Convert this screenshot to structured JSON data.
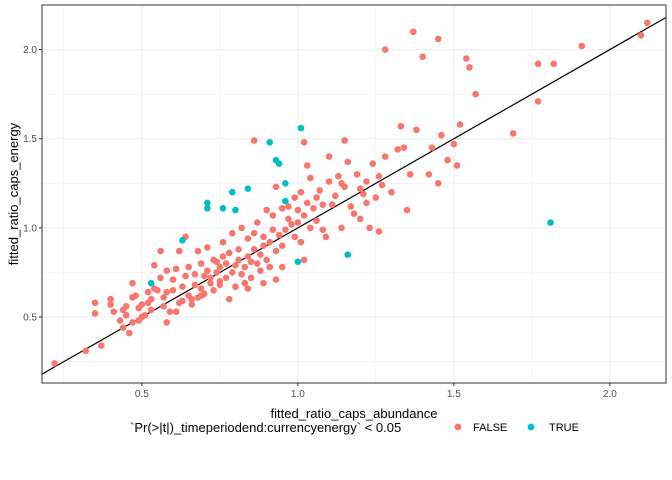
{
  "chart_data": {
    "type": "scatter",
    "xlabel": "fitted_ratio_caps_abundance",
    "ylabel": "fitted_ratio_caps_energy",
    "xlim": [
      0.18,
      2.18
    ],
    "ylim": [
      0.13,
      2.25
    ],
    "x_ticks": [
      0.5,
      1.0,
      1.5,
      2.0
    ],
    "x_tick_labels": [
      "0.5",
      "1.0",
      "1.5",
      "2.0"
    ],
    "y_ticks": [
      0.5,
      1.0,
      1.5,
      2.0
    ],
    "y_tick_labels": [
      "0.5",
      "1.0",
      "1.5",
      "2.0"
    ],
    "grid": true,
    "reference_line": {
      "type": "identity",
      "slope": 1,
      "intercept": 0,
      "color": "#000000"
    },
    "legend": {
      "title": "`Pr(>|t|)_timeperiodend:currencyenergy` < 0.05",
      "position": "bottom",
      "entries": [
        {
          "label": "FALSE",
          "color": "#F8766D"
        },
        {
          "label": "TRUE",
          "color": "#00BFC4"
        }
      ]
    },
    "series": [
      {
        "name": "FALSE",
        "color": "#F8766D",
        "points": [
          [
            0.22,
            0.24
          ],
          [
            0.32,
            0.31
          ],
          [
            0.37,
            0.34
          ],
          [
            0.35,
            0.58
          ],
          [
            0.35,
            0.52
          ],
          [
            0.4,
            0.6
          ],
          [
            0.4,
            0.57
          ],
          [
            0.41,
            0.53
          ],
          [
            0.43,
            0.48
          ],
          [
            0.44,
            0.54
          ],
          [
            0.45,
            0.51
          ],
          [
            0.45,
            0.56
          ],
          [
            0.46,
            0.41
          ],
          [
            0.47,
            0.47
          ],
          [
            0.47,
            0.61
          ],
          [
            0.47,
            0.69
          ],
          [
            0.48,
            0.62
          ],
          [
            0.49,
            0.55
          ],
          [
            0.49,
            0.48
          ],
          [
            0.5,
            0.57
          ],
          [
            0.51,
            0.51
          ],
          [
            0.52,
            0.64
          ],
          [
            0.52,
            0.58
          ],
          [
            0.53,
            0.6
          ],
          [
            0.53,
            0.54
          ],
          [
            0.54,
            0.66
          ],
          [
            0.54,
            0.79
          ],
          [
            0.55,
            0.65
          ],
          [
            0.56,
            0.87
          ],
          [
            0.56,
            0.72
          ],
          [
            0.57,
            0.61
          ],
          [
            0.57,
            0.56
          ],
          [
            0.58,
            0.76
          ],
          [
            0.58,
            0.64
          ],
          [
            0.59,
            0.53
          ],
          [
            0.6,
            0.65
          ],
          [
            0.6,
            0.71
          ],
          [
            0.61,
            0.53
          ],
          [
            0.61,
            0.77
          ],
          [
            0.62,
            0.87
          ],
          [
            0.62,
            0.58
          ],
          [
            0.63,
            0.59
          ],
          [
            0.63,
            0.67
          ],
          [
            0.64,
            0.95
          ],
          [
            0.64,
            0.73
          ],
          [
            0.65,
            0.62
          ],
          [
            0.65,
            0.78
          ],
          [
            0.66,
            0.6
          ],
          [
            0.66,
            0.57
          ],
          [
            0.67,
            0.74
          ],
          [
            0.67,
            0.68
          ],
          [
            0.68,
            0.87
          ],
          [
            0.68,
            0.61
          ],
          [
            0.69,
            0.66
          ],
          [
            0.69,
            0.8
          ],
          [
            0.7,
            0.73
          ],
          [
            0.7,
            0.63
          ],
          [
            0.71,
            0.76
          ],
          [
            0.71,
            0.89
          ],
          [
            0.72,
            0.69
          ],
          [
            0.72,
            0.72
          ],
          [
            0.73,
            0.82
          ],
          [
            0.73,
            0.65
          ],
          [
            0.74,
            0.81
          ],
          [
            0.74,
            0.75
          ],
          [
            0.75,
            0.78
          ],
          [
            0.75,
            0.68
          ],
          [
            0.76,
            0.84
          ],
          [
            0.76,
            0.92
          ],
          [
            0.77,
            0.8
          ],
          [
            0.77,
            0.72
          ],
          [
            0.78,
            0.6
          ],
          [
            0.78,
            0.86
          ],
          [
            0.79,
            0.75
          ],
          [
            0.79,
            0.97
          ],
          [
            0.8,
            0.79
          ],
          [
            0.8,
            0.67
          ],
          [
            0.81,
            0.88
          ],
          [
            0.81,
            0.82
          ],
          [
            0.82,
            0.74
          ],
          [
            0.82,
            1.0
          ],
          [
            0.83,
            0.78
          ],
          [
            0.83,
            0.69
          ],
          [
            0.84,
            0.84
          ],
          [
            0.84,
            0.94
          ],
          [
            0.85,
            0.81
          ],
          [
            0.85,
            0.72
          ],
          [
            0.86,
            0.97
          ],
          [
            0.86,
            0.88
          ],
          [
            0.87,
            0.8
          ],
          [
            0.87,
            1.03
          ],
          [
            0.88,
            0.85
          ],
          [
            0.88,
            0.76
          ],
          [
            0.89,
            0.95
          ],
          [
            0.89,
            0.9
          ],
          [
            0.9,
            0.82
          ],
          [
            0.9,
            1.1
          ],
          [
            0.91,
            0.92
          ],
          [
            0.91,
            0.78
          ],
          [
            0.92,
            0.99
          ],
          [
            0.92,
            1.07
          ],
          [
            0.93,
            0.87
          ],
          [
            0.93,
            1.23
          ],
          [
            0.94,
            0.96
          ],
          [
            0.95,
            1.11
          ],
          [
            0.95,
            0.9
          ],
          [
            0.96,
            0.99
          ],
          [
            0.97,
            1.05
          ],
          [
            0.97,
            1.12
          ],
          [
            0.98,
            1.02
          ],
          [
            0.99,
            0.95
          ],
          [
            0.99,
            1.17
          ],
          [
            1.0,
            1.03
          ],
          [
            1.0,
            1.1
          ],
          [
            1.01,
            0.92
          ],
          [
            1.01,
            1.2
          ],
          [
            1.02,
            1.07
          ],
          [
            1.02,
            1.48
          ],
          [
            1.03,
            1.14
          ],
          [
            1.03,
            1.35
          ],
          [
            1.04,
            1.0
          ],
          [
            1.04,
            1.28
          ],
          [
            1.05,
            1.11
          ],
          [
            1.06,
            1.17
          ],
          [
            1.06,
            1.04
          ],
          [
            1.07,
            1.21
          ],
          [
            1.08,
            1.13
          ],
          [
            1.09,
            0.95
          ],
          [
            1.1,
            1.26
          ],
          [
            1.1,
            1.4
          ],
          [
            1.11,
            1.13
          ],
          [
            1.12,
            1.18
          ],
          [
            1.13,
            1.29
          ],
          [
            1.14,
            1.0
          ],
          [
            1.15,
            1.49
          ],
          [
            1.15,
            1.23
          ],
          [
            1.16,
            1.37
          ],
          [
            1.18,
            1.08
          ],
          [
            1.19,
            1.3
          ],
          [
            1.2,
            1.22
          ],
          [
            1.21,
            1.19
          ],
          [
            1.22,
            1.26
          ],
          [
            1.22,
            1.14
          ],
          [
            1.23,
            1.0
          ],
          [
            1.24,
            1.36
          ],
          [
            1.25,
            1.17
          ],
          [
            1.26,
            1.29
          ],
          [
            1.27,
            1.24
          ],
          [
            1.28,
            1.4
          ],
          [
            1.28,
            2.0
          ],
          [
            1.3,
            1.2
          ],
          [
            1.32,
            1.44
          ],
          [
            1.33,
            1.57
          ],
          [
            1.34,
            1.45
          ],
          [
            1.35,
            1.1
          ],
          [
            1.37,
            2.1
          ],
          [
            1.38,
            1.55
          ],
          [
            1.4,
            1.96
          ],
          [
            1.42,
            1.3
          ],
          [
            1.43,
            1.45
          ],
          [
            1.45,
            2.06
          ],
          [
            1.46,
            1.52
          ],
          [
            1.48,
            1.38
          ],
          [
            1.5,
            1.47
          ],
          [
            1.52,
            1.58
          ],
          [
            1.54,
            1.95
          ],
          [
            1.55,
            1.9
          ],
          [
            1.57,
            1.75
          ],
          [
            1.69,
            1.53
          ],
          [
            1.77,
            1.92
          ],
          [
            1.77,
            1.71
          ],
          [
            1.82,
            1.92
          ],
          [
            1.91,
            2.02
          ],
          [
            2.1,
            2.08
          ],
          [
            2.12,
            2.15
          ],
          [
            0.86,
            1.49
          ],
          [
            1.14,
            1.25
          ],
          [
            1.2,
            1.05
          ],
          [
            1.26,
            0.98
          ],
          [
            1.36,
            1.3
          ],
          [
            1.45,
            1.25
          ],
          [
            1.51,
            1.35
          ],
          [
            1.02,
            0.82
          ],
          [
            0.95,
            0.78
          ],
          [
            0.93,
            0.71
          ],
          [
            0.89,
            0.69
          ],
          [
            0.84,
            0.66
          ],
          [
            1.08,
            0.99
          ],
          [
            1.17,
            1.12
          ],
          [
            0.75,
            0.7
          ],
          [
            0.69,
            0.62
          ],
          [
            0.58,
            0.47
          ],
          [
            0.5,
            0.5
          ],
          [
            0.44,
            0.44
          ]
        ]
      },
      {
        "name": "TRUE",
        "color": "#00BFC4",
        "points": [
          [
            0.53,
            0.69
          ],
          [
            0.63,
            0.93
          ],
          [
            0.71,
            1.14
          ],
          [
            0.71,
            1.11
          ],
          [
            0.76,
            1.11
          ],
          [
            0.79,
            1.2
          ],
          [
            0.8,
            1.1
          ],
          [
            0.84,
            1.22
          ],
          [
            0.91,
            1.48
          ],
          [
            0.93,
            1.38
          ],
          [
            0.94,
            1.36
          ],
          [
            0.96,
            1.25
          ],
          [
            0.96,
            1.15
          ],
          [
            1.0,
            0.81
          ],
          [
            1.01,
            1.56
          ],
          [
            1.16,
            0.85
          ],
          [
            1.81,
            1.03
          ]
        ]
      }
    ]
  }
}
